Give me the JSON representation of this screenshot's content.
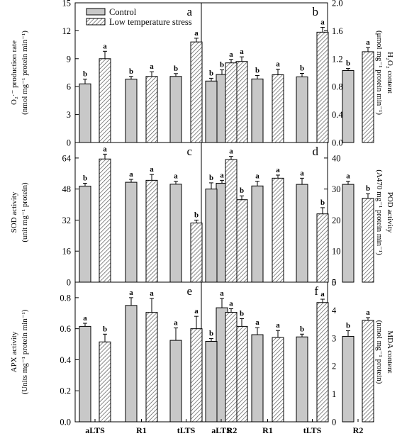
{
  "colors": {
    "control_fill": "#c8c8c8",
    "stress_fill": "#ffffff",
    "hatch": "#555555",
    "stroke": "#000000"
  },
  "chart_data": [
    {
      "type": "bar",
      "panel": "a",
      "categories": [
        "aLTS",
        "R1",
        "tLTS",
        "R2"
      ],
      "ylabel": "O₂·⁻ production rate (nmol mg⁻¹ protein min⁻¹)",
      "ylim": [
        0,
        15
      ],
      "yticks": [
        0,
        3,
        6,
        9,
        12,
        15
      ],
      "yaxis": "left",
      "series": [
        {
          "name": "Control",
          "values": [
            6.3,
            6.8,
            7.1,
            7.3
          ],
          "errors": [
            0.5,
            0.3,
            0.3,
            0.5
          ],
          "letters": [
            "b",
            "b",
            "b",
            "b"
          ]
        },
        {
          "name": "Low temperature stress",
          "values": [
            9.0,
            7.1,
            10.8,
            8.7
          ],
          "errors": [
            0.8,
            0.5,
            0.4,
            0.5
          ],
          "letters": [
            "a",
            "a",
            "a",
            "a"
          ]
        }
      ]
    },
    {
      "type": "bar",
      "panel": "b",
      "categories": [
        "aLTS",
        "R1",
        "tLTS",
        "R2"
      ],
      "ylabel": "H₂O₂ content (μmol mg⁻¹ protein min⁻¹)",
      "ylim": [
        0,
        2.0
      ],
      "yticks": [
        "0.0",
        "0.4",
        "0.8",
        "1.2",
        "1.6",
        "2.0"
      ],
      "yaxis": "right",
      "series": [
        {
          "name": "Control",
          "values": [
            0.88,
            0.91,
            0.94,
            1.03
          ],
          "errors": [
            0.04,
            0.05,
            0.05,
            0.03
          ],
          "letters": [
            "b",
            "b",
            "b",
            "b"
          ]
        },
        {
          "name": "Low temperature stress",
          "values": [
            1.14,
            0.97,
            1.58,
            1.3
          ],
          "errors": [
            0.05,
            0.08,
            0.07,
            0.06
          ],
          "letters": [
            "a",
            "a",
            "a",
            "a"
          ]
        }
      ]
    },
    {
      "type": "bar",
      "panel": "c",
      "categories": [
        "aLTS",
        "R1",
        "tLTS",
        "R2"
      ],
      "ylabel": "SOD activity (unit mg⁻¹ protein)",
      "ylim": [
        0,
        72
      ],
      "yticks": [
        0,
        16,
        32,
        48,
        64
      ],
      "yaxis": "left",
      "series": [
        {
          "name": "Control",
          "values": [
            49.5,
            51.5,
            50.5,
            51.0
          ],
          "errors": [
            1.5,
            1.5,
            1.5,
            1.5
          ],
          "letters": [
            "b",
            "a",
            "a",
            "a"
          ]
        },
        {
          "name": "Low temperature stress",
          "values": [
            63.5,
            52.5,
            30.5,
            42.5
          ],
          "errors": [
            2.5,
            3.0,
            1.5,
            2.0
          ],
          "letters": [
            "a",
            "a",
            "b",
            "b"
          ]
        }
      ]
    },
    {
      "type": "bar",
      "panel": "d",
      "categories": [
        "aLTS",
        "R1",
        "tLTS",
        "R2"
      ],
      "ylabel": "POD activity (A470 mg⁻¹ protein min⁻¹)",
      "ylim": [
        0,
        45
      ],
      "yticks": [
        0,
        10,
        20,
        30,
        40
      ],
      "yaxis": "right",
      "series": [
        {
          "name": "Control",
          "values": [
            30.0,
            31.0,
            31.5,
            31.5
          ],
          "errors": [
            2.0,
            1.5,
            2.0,
            1.0
          ],
          "letters": [
            "b",
            "a",
            "a",
            "a"
          ]
        },
        {
          "name": "Low temperature stress",
          "values": [
            39.5,
            33.5,
            22.0,
            27.0
          ],
          "errors": [
            1.0,
            1.0,
            2.0,
            1.5
          ],
          "letters": [
            "a",
            "a",
            "b",
            "b"
          ]
        }
      ]
    },
    {
      "type": "bar",
      "panel": "e",
      "categories": [
        "aLTS",
        "R1",
        "tLTS",
        "R2"
      ],
      "ylabel": "APX activity (Units mg⁻¹ protein min⁻¹)",
      "ylim": [
        0,
        0.9
      ],
      "yticks": [
        "0.0",
        "0.2",
        "0.4",
        "0.6",
        "0.8"
      ],
      "yaxis": "left",
      "series": [
        {
          "name": "Control",
          "values": [
            0.615,
            0.75,
            0.525,
            0.735
          ],
          "errors": [
            0.02,
            0.05,
            0.08,
            0.06
          ],
          "letters": [
            "a",
            "a",
            "a",
            "a"
          ]
        },
        {
          "name": "Low temperature stress",
          "values": [
            0.515,
            0.705,
            0.6,
            0.615
          ],
          "errors": [
            0.05,
            0.09,
            0.08,
            0.05
          ],
          "letters": [
            "b",
            "a",
            "a",
            "b"
          ]
        }
      ]
    },
    {
      "type": "bar",
      "panel": "f",
      "categories": [
        "aLTS",
        "R1",
        "tLTS",
        "R2"
      ],
      "ylabel": "MDA content (nmol mg⁻¹ protein)",
      "ylim": [
        0,
        5
      ],
      "yticks": [
        0,
        1,
        2,
        3,
        4,
        5
      ],
      "yaxis": "right",
      "series": [
        {
          "name": "Control",
          "values": [
            2.88,
            3.12,
            3.04,
            3.06
          ],
          "errors": [
            0.1,
            0.25,
            0.1,
            0.2
          ],
          "letters": [
            "b",
            "a",
            "b",
            "b"
          ]
        },
        {
          "name": "Low temperature stress",
          "values": [
            3.92,
            3.02,
            4.27,
            3.63
          ],
          "errors": [
            0.13,
            0.25,
            0.12,
            0.1
          ],
          "letters": [
            "a",
            "a",
            "a",
            "a"
          ]
        }
      ]
    }
  ],
  "legend": {
    "items": [
      "Control",
      "Low temperature stress"
    ],
    "placement": "top-left"
  }
}
